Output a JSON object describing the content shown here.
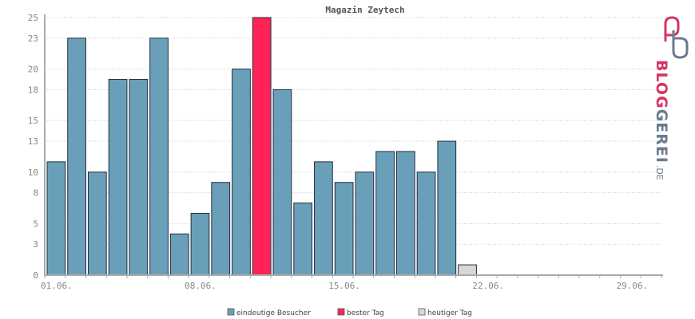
{
  "chart_data": {
    "type": "bar",
    "title": "Magazin Zeytech",
    "ylim": [
      0,
      25
    ],
    "yticks": [
      0,
      3,
      5,
      8,
      10,
      13,
      15,
      18,
      20,
      23,
      25
    ],
    "x_tick_labels": [
      {
        "day": 1,
        "label": "01.06."
      },
      {
        "day": 8,
        "label": "08.06."
      },
      {
        "day": 15,
        "label": "15.06."
      },
      {
        "day": 22,
        "label": "22.06."
      },
      {
        "day": 29,
        "label": "29.06."
      }
    ],
    "days_in_month": 30,
    "grid": true,
    "legend_position": "bottom",
    "series": [
      {
        "name": "eindeutige Besucher",
        "color": "#6a9fba"
      },
      {
        "name": "bester Tag",
        "color": "#ff2357"
      },
      {
        "name": "heutiger Tag",
        "color": "#d8d8d8"
      }
    ],
    "bars": [
      {
        "day": 1,
        "value": 11,
        "series": 0
      },
      {
        "day": 2,
        "value": 23,
        "series": 0
      },
      {
        "day": 3,
        "value": 10,
        "series": 0
      },
      {
        "day": 4,
        "value": 19,
        "series": 0
      },
      {
        "day": 5,
        "value": 19,
        "series": 0
      },
      {
        "day": 6,
        "value": 23,
        "series": 0
      },
      {
        "day": 7,
        "value": 4,
        "series": 0
      },
      {
        "day": 8,
        "value": 6,
        "series": 0
      },
      {
        "day": 9,
        "value": 9,
        "series": 0
      },
      {
        "day": 10,
        "value": 20,
        "series": 0
      },
      {
        "day": 11,
        "value": 25,
        "series": 1
      },
      {
        "day": 12,
        "value": 18,
        "series": 0
      },
      {
        "day": 13,
        "value": 7,
        "series": 0
      },
      {
        "day": 14,
        "value": 11,
        "series": 0
      },
      {
        "day": 15,
        "value": 9,
        "series": 0
      },
      {
        "day": 16,
        "value": 10,
        "series": 0
      },
      {
        "day": 17,
        "value": 12,
        "series": 0
      },
      {
        "day": 18,
        "value": 12,
        "series": 0
      },
      {
        "day": 19,
        "value": 10,
        "series": 0
      },
      {
        "day": 20,
        "value": 13,
        "series": 0
      },
      {
        "day": 21,
        "value": 1,
        "series": 2
      }
    ]
  },
  "logo": {
    "text": "BLOGGEREI",
    "suffix": ".DE",
    "colors": {
      "blog": "#d8345f",
      "gerei": "#6b7b8c"
    }
  }
}
